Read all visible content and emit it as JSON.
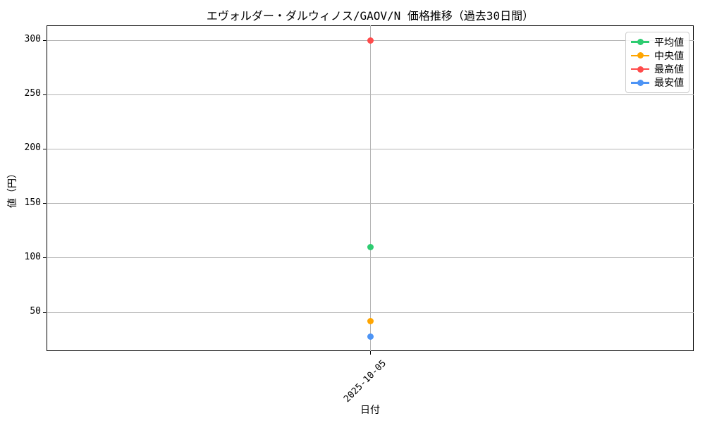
{
  "chart_data": {
    "type": "line",
    "title": "エヴォルダー・ダルウィノス/GAOV/N 価格推移（過去30日間）",
    "xlabel": "日付",
    "ylabel": "値（円）",
    "categories": [
      "2025-10-05"
    ],
    "series": [
      {
        "id": "mean",
        "name": "平均値",
        "color": "#2ecc71",
        "values": [
          110
        ]
      },
      {
        "id": "median",
        "name": "中央値",
        "color": "#ffa500",
        "values": [
          42
        ]
      },
      {
        "id": "max",
        "name": "最高値",
        "color": "#ff4b4b",
        "values": [
          300
        ]
      },
      {
        "id": "min",
        "name": "最安値",
        "color": "#4d94f5",
        "values": [
          28
        ]
      }
    ],
    "ylim": [
      14.4,
      313.6
    ],
    "yticks": [
      50,
      100,
      150,
      200,
      250,
      300
    ],
    "grid": true,
    "legend_position": "upper right"
  }
}
